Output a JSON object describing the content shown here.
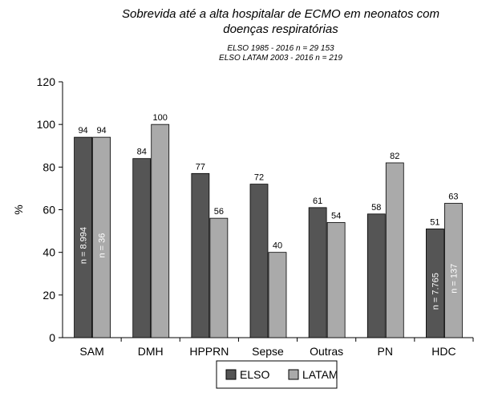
{
  "chart_data": {
    "type": "bar",
    "title": [
      "Sobrevida até a alta hospitalar de ECMO em neonatos com",
      "doenças respiratórias"
    ],
    "subtitle": [
      "ELSO 1985 - 2016 n = 29 153",
      "ELSO LATAM 2003 - 2016 n = 219"
    ],
    "y_label": "%",
    "categories": [
      "SAM",
      "DMH",
      "HPPRN",
      "Sepse",
      "Outras",
      "PN",
      "HDC"
    ],
    "series": [
      {
        "name": "ELSO",
        "color": "#555555",
        "values": [
          94,
          84,
          77,
          72,
          61,
          58,
          51
        ],
        "bar_labels": [
          "n = 8.994",
          null,
          null,
          null,
          null,
          null,
          "n = 7.765"
        ]
      },
      {
        "name": "LATAM",
        "color": "#aaaaaa",
        "values": [
          94,
          100,
          56,
          40,
          54,
          82,
          63
        ],
        "bar_labels": [
          "n = 36",
          null,
          null,
          null,
          null,
          null,
          "n = 137"
        ]
      }
    ],
    "ylim": [
      0,
      120
    ],
    "yticks": [
      0,
      20,
      40,
      60,
      80,
      100,
      120
    ],
    "legend": "bottom"
  }
}
